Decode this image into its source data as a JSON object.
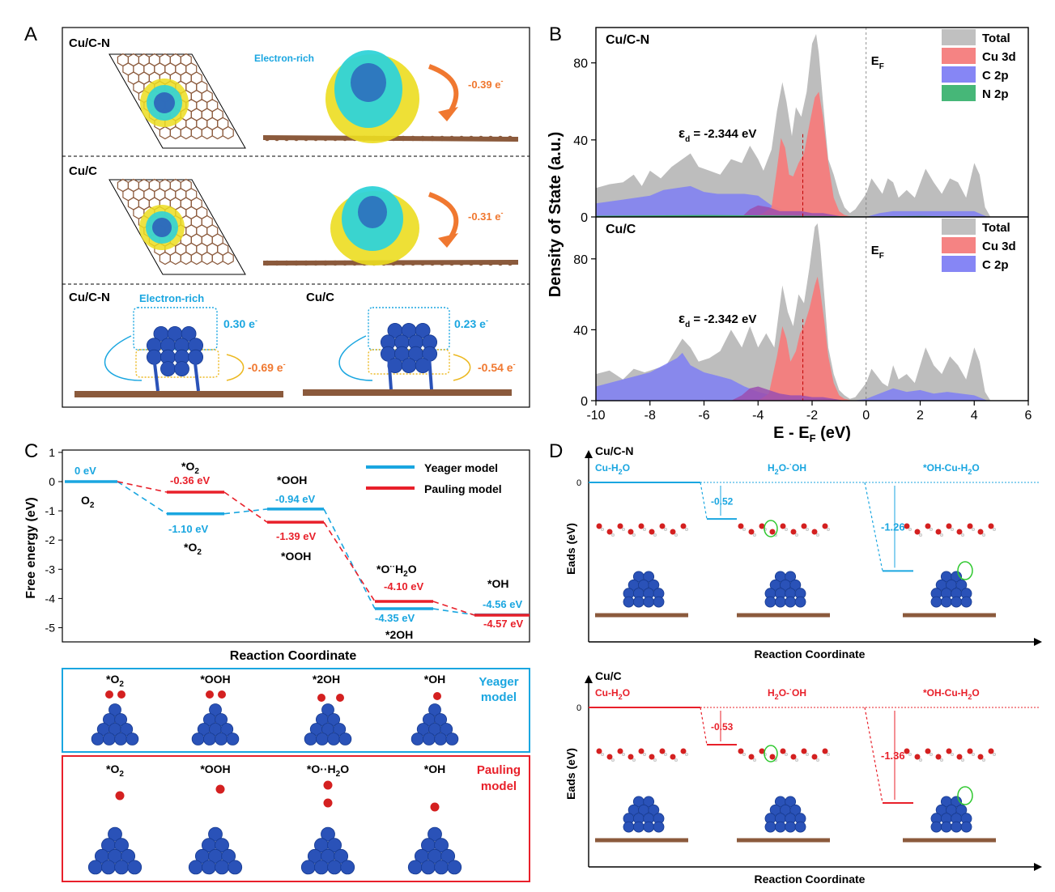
{
  "colors": {
    "total": "#bdbdbd",
    "cu3d": "#f47c7c",
    "c2p": "#7f7ff4",
    "n2p": "#3cb371",
    "overlap": "#9b4fb0",
    "blue": "#1aa6e0",
    "red": "#e8202a",
    "orange": "#f07830",
    "carbon": "#8b5a3c",
    "copper": "#2a52b8",
    "oxygen": "#d42020",
    "cyan": "#2fd3d8",
    "yellow": "#ecdd20"
  },
  "panel_labels": {
    "a": "A",
    "b": "B",
    "c": "C",
    "d": "D"
  },
  "panel_a": {
    "row1_title": "Cu/C-N",
    "row1_note": "Electron-rich",
    "row1_transfer": "-0.39 e",
    "row2_title": "Cu/C",
    "row2_transfer": "-0.31 e",
    "row3_left_title": "Cu/C-N",
    "row3_left_note": "Electron-rich",
    "row3_left_top": "0.30 e",
    "row3_left_bottom": "-0.69 e",
    "row3_right_title": "Cu/C",
    "row3_right_top": "0.23 e",
    "row3_right_bottom": "-0.54 e",
    "superscript": "-"
  },
  "chart_data": [
    {
      "id": "dos",
      "type": "area",
      "ylabel": "Density of State (a.u.)",
      "xlabel": "E - E",
      "xlabel_sub": "F",
      "xlabel_unit": " (eV)",
      "xlim": [
        -10,
        6
      ],
      "xticks": [
        -10,
        -8,
        -6,
        -4,
        -2,
        0,
        2,
        4,
        6
      ],
      "fermi_label": "E",
      "fermi_sub": "F",
      "subplots": [
        {
          "title": "Cu/C-N",
          "ylim": [
            0,
            95
          ],
          "yticks": [
            0,
            40,
            80
          ],
          "eps_symbol": "ε",
          "eps_sub": "d",
          "eps_text": " = -2.344 eV",
          "d_band_center": -2.344,
          "legend": [
            "Total",
            "Cu 3d",
            "C 2p",
            "N 2p"
          ],
          "series": [
            {
              "name": "Total",
              "x": [
                -10,
                -9.5,
                -9,
                -8.6,
                -8.3,
                -8,
                -7.6,
                -7.2,
                -6.8,
                -6.5,
                -6.2,
                -5.8,
                -5.4,
                -5,
                -4.6,
                -4.3,
                -4,
                -3.8,
                -3.5,
                -3.3,
                -3.1,
                -2.95,
                -2.75,
                -2.6,
                -2.4,
                -2.2,
                -2.0,
                -1.85,
                -1.75,
                -1.6,
                -1.4,
                -1.2,
                -1.0,
                -0.8,
                -0.6,
                -0.4,
                -0.2,
                0,
                0.2,
                0.4,
                0.6,
                0.8,
                1.0,
                1.2,
                1.5,
                1.8,
                2.2,
                2.5,
                2.8,
                3.1,
                3.4,
                3.7,
                4.0,
                4.2,
                4.4,
                4.6
              ],
              "y": [
                15,
                17,
                18,
                22,
                16,
                24,
                20,
                26,
                30,
                33,
                26,
                24,
                22,
                30,
                28,
                37,
                30,
                24,
                35,
                55,
                70,
                60,
                42,
                57,
                52,
                65,
                90,
                95,
                85,
                60,
                30,
                22,
                12,
                5,
                2,
                4,
                8,
                12,
                20,
                16,
                12,
                20,
                18,
                10,
                14,
                10,
                25,
                18,
                12,
                20,
                18,
                10,
                28,
                22,
                5,
                0
              ]
            },
            {
              "name": "C 2p",
              "x": [
                -10,
                -9,
                -8,
                -7.5,
                -7,
                -6.5,
                -6,
                -5.5,
                -5,
                -4.5,
                -4.0,
                -3.5,
                -3.0,
                -2.5,
                -2,
                -1.5,
                -1,
                -0.5,
                0,
                0.5,
                1,
                2,
                3,
                4,
                4.5
              ],
              "y": [
                7,
                9,
                11,
                14,
                15,
                16,
                13,
                12,
                12,
                12,
                11,
                6,
                3,
                2,
                2,
                2,
                1,
                0,
                0,
                2,
                3,
                3,
                3,
                3,
                0
              ]
            },
            {
              "name": "Cu 3d",
              "x": [
                -4.2,
                -3.8,
                -3.5,
                -3.3,
                -3.15,
                -3.0,
                -2.85,
                -2.7,
                -2.5,
                -2.3,
                -2.1,
                -1.9,
                -1.75,
                -1.6,
                -1.4,
                -1.2,
                -1.0,
                -0.8,
                -0.5
              ],
              "y": [
                0,
                2,
                5,
                25,
                41,
                36,
                22,
                21,
                28,
                33,
                48,
                62,
                65,
                52,
                28,
                10,
                3,
                1,
                0
              ]
            },
            {
              "name": "Overlap",
              "x": [
                -4.6,
                -4.3,
                -4.0,
                -3.6,
                -3.2,
                -2.8,
                -2.4,
                -2.0,
                -1.6,
                -1.2,
                -0.8,
                -0.4
              ],
              "y": [
                0,
                4,
                6,
                5,
                3,
                3,
                3,
                2,
                2,
                1,
                0,
                0
              ]
            },
            {
              "name": "N 2p",
              "x": [
                -10,
                -8,
                -6,
                -4,
                -2,
                0,
                2,
                4.5
              ],
              "y": [
                0.6,
                0.8,
                1,
                0.8,
                0.5,
                0.2,
                0.5,
                0
              ]
            }
          ]
        },
        {
          "title": "Cu/C",
          "ylim": [
            0,
            100
          ],
          "yticks": [
            0,
            40,
            80
          ],
          "eps_symbol": "ε",
          "eps_sub": "d",
          "eps_text": " = -2.342 eV",
          "d_band_center": -2.342,
          "legend": [
            "Total",
            "Cu 3d",
            "C 2p"
          ],
          "series": [
            {
              "name": "Total",
              "x": [
                -10,
                -9.5,
                -9,
                -8.6,
                -8.2,
                -7.8,
                -7.4,
                -7.0,
                -6.8,
                -6.5,
                -6.2,
                -5.8,
                -5.4,
                -5,
                -4.6,
                -4.3,
                -4,
                -3.7,
                -3.4,
                -3.1,
                -2.9,
                -2.7,
                -2.5,
                -2.3,
                -2.1,
                -1.9,
                -1.8,
                -1.7,
                -1.55,
                -1.4,
                -1.2,
                -1.0,
                -0.8,
                -0.6,
                -0.4,
                -0.2,
                0,
                0.2,
                0.4,
                0.6,
                0.8,
                1.0,
                1.2,
                1.5,
                1.8,
                2.2,
                2.5,
                2.8,
                3.1,
                3.4,
                3.7,
                4.0,
                4.2,
                4.4,
                4.6
              ],
              "y": [
                15,
                17,
                12,
                18,
                16,
                18,
                20,
                30,
                35,
                30,
                22,
                24,
                28,
                40,
                30,
                42,
                30,
                38,
                30,
                65,
                50,
                42,
                60,
                55,
                75,
                98,
                100,
                88,
                60,
                30,
                15,
                6,
                3,
                1,
                2,
                6,
                10,
                18,
                14,
                10,
                8,
                20,
                12,
                15,
                10,
                30,
                20,
                15,
                25,
                20,
                12,
                30,
                22,
                5,
                0
              ]
            },
            {
              "name": "C 2p",
              "x": [
                -10,
                -9,
                -8,
                -7.5,
                -7,
                -6.8,
                -6.5,
                -6,
                -5.5,
                -5,
                -4.5,
                -4.0,
                -3.5,
                -3.0,
                -2.5,
                -2,
                -1.5,
                -1,
                -0.5,
                0,
                0.5,
                1,
                1.5,
                2,
                2.5,
                3,
                3.5,
                4,
                4.5
              ],
              "y": [
                8,
                12,
                16,
                20,
                24,
                27,
                20,
                16,
                14,
                12,
                8,
                5,
                3,
                2,
                2,
                2,
                1,
                0,
                0,
                1,
                4,
                7,
                5,
                6,
                4,
                5,
                4,
                3,
                0
              ]
            },
            {
              "name": "Cu 3d",
              "x": [
                -4.0,
                -3.6,
                -3.3,
                -3.1,
                -2.95,
                -2.8,
                -2.6,
                -2.45,
                -2.3,
                -2.1,
                -1.9,
                -1.8,
                -1.7,
                -1.55,
                -1.4,
                -1.2,
                -1.0,
                -0.8,
                -0.5
              ],
              "y": [
                0,
                4,
                25,
                42,
                35,
                22,
                28,
                38,
                42,
                52,
                65,
                70,
                62,
                45,
                25,
                10,
                3,
                1,
                0
              ]
            },
            {
              "name": "Overlap",
              "x": [
                -5.0,
                -4.6,
                -4.3,
                -4.0,
                -3.6,
                -3.2,
                -2.8,
                -2.4,
                -2.0,
                -1.6,
                -1.2,
                -0.8,
                -0.4
              ],
              "y": [
                0,
                3,
                7,
                8,
                6,
                4,
                3,
                3,
                2,
                2,
                1,
                0,
                0
              ]
            }
          ]
        }
      ]
    },
    {
      "id": "free_energy",
      "type": "line",
      "ylabel": "Free energy (eV)",
      "xlabel": "Reaction Coordinate",
      "ylim": [
        -5.5,
        1
      ],
      "yticks": [
        1,
        0,
        -1,
        -2,
        -3,
        -4,
        -5
      ],
      "legend": [
        "Yeager model",
        "Pauling model"
      ],
      "yeager": {
        "name": "Yeager model",
        "values": [
          0,
          -1.1,
          -0.94,
          -4.35,
          -4.56
        ],
        "value_labels": [
          "0 eV",
          "-1.10 eV",
          "-0.94 eV",
          "-4.35 eV",
          "-4.56 eV"
        ]
      },
      "pauling": {
        "name": "Pauling model",
        "values": [
          0,
          -0.36,
          -1.39,
          -4.1,
          -4.57
        ],
        "value_labels": [
          "0 eV",
          "-0.36 eV",
          "-1.39 eV",
          "-4.10 eV",
          "-4.57 eV"
        ]
      },
      "state_labels": {
        "o2": "O",
        "o2_sub": "2",
        "star_o2": "*O",
        "star_o2_sub": "2",
        "ooh": "*OOH",
        "oh2o_a": "*O",
        "oh2o_dots": "··",
        "oh2o_b": "H",
        "oh2o_sub": "2",
        "oh2o_c": "O",
        "two_oh": "*2OH",
        "oh": "*OH"
      }
    },
    {
      "id": "eads_cucn",
      "type": "line",
      "title": "Cu/C-N",
      "ylabel": "Eads (eV)",
      "xlabel": "Reaction Coordinate",
      "zero_label": "0",
      "steps": [
        "Cu-H2O",
        "H2O-·OH",
        "*OH-Cu-H2O"
      ],
      "values": [
        0,
        -0.52,
        -1.26
      ],
      "value_labels": [
        "",
        "-0.52",
        "-1.26"
      ],
      "labels_rich": {
        "s1a": "Cu-H",
        "s1b": "2",
        "s1c": "O",
        "s2a": "H",
        "s2b": "2",
        "s2c": "O-",
        "s2d": "·",
        "s2e": "OH",
        "s3a": "*OH-Cu-H",
        "s3b": "2",
        "s3c": "O"
      }
    },
    {
      "id": "eads_cuc",
      "type": "line",
      "title": "Cu/C",
      "ylabel": "Eads (eV)",
      "xlabel": "Reaction Coordinate",
      "zero_label": "0",
      "steps": [
        "Cu-H2O",
        "H2O-·OH",
        "*OH-Cu-H2O"
      ],
      "values": [
        0,
        -0.53,
        -1.36
      ],
      "value_labels": [
        "",
        "-0.53",
        "-1.36"
      ],
      "labels_rich": {
        "s1a": "Cu-H",
        "s1b": "2",
        "s1c": "O",
        "s2a": "H",
        "s2b": "2",
        "s2c": "O-",
        "s2d": "·",
        "s2e": "OH",
        "s3a": "*OH-Cu-H",
        "s3b": "2",
        "s3c": "O"
      }
    }
  ],
  "panel_c_models": {
    "yeager_title_1": "Yeager",
    "yeager_title_2": "model",
    "pauling_title_1": "Pauling",
    "pauling_title_2": "model",
    "yeager_states": [
      {
        "a": "*O",
        "sub": "2",
        "b": ""
      },
      {
        "a": "*OOH",
        "sub": "",
        "b": ""
      },
      {
        "a": "*2OH",
        "sub": "",
        "b": ""
      },
      {
        "a": "*OH",
        "sub": "",
        "b": ""
      }
    ],
    "pauling_states": [
      {
        "a": "*O",
        "sub": "2",
        "b": ""
      },
      {
        "a": "*OOH",
        "sub": "",
        "b": ""
      },
      {
        "a": "*O··H",
        "sub": "2",
        "b": "O"
      },
      {
        "a": "*OH",
        "sub": "",
        "b": ""
      }
    ]
  }
}
